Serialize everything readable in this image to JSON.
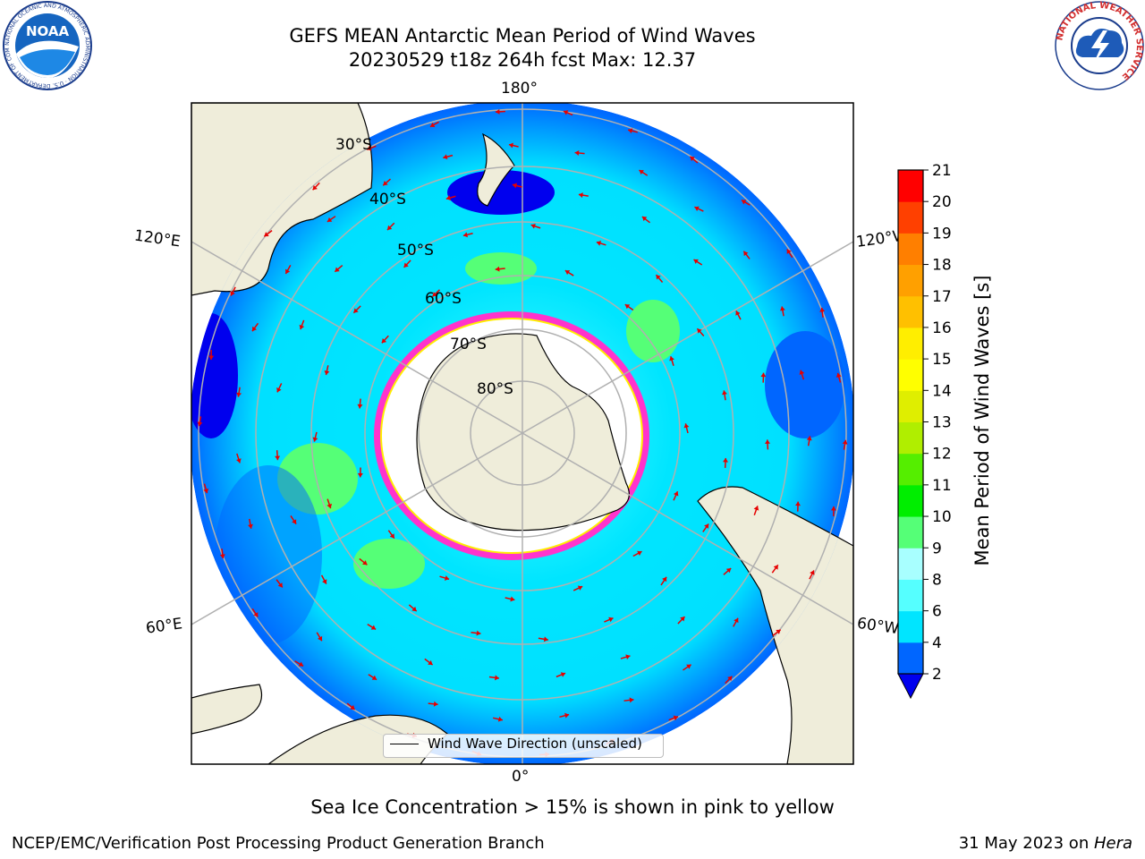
{
  "header": {
    "title_line1": "GEFS MEAN Antarctic Mean Period of Wind Waves",
    "title_line2": "20230529 t18z 264h fcst   Max: 12.37",
    "logo_left_text": "NOAA",
    "logo_left_ring": "NATIONAL OCEANIC AND ATMOSPHERIC ADMINISTRATION · U.S. DEPARTMENT OF COMMERCE",
    "logo_right_ring": "NATIONAL WEATHER SERVICE"
  },
  "map": {
    "lon_labels": {
      "top": "180°",
      "bottom": "0°",
      "upper_left": "120°E",
      "upper_right": "120°W",
      "lower_left": "60°E",
      "lower_right": "60°W"
    },
    "lat_labels": [
      "30°S",
      "40°S",
      "50°S",
      "60°S",
      "70°S",
      "80°S"
    ],
    "legend_label": "Wind Wave Direction (unscaled)",
    "colors": {
      "land": "#efedda",
      "ice_free_shelf": "#ffffff",
      "sea_ice_edge": "#ff33cc",
      "arrow": "#e60000",
      "grid": "#b0b0b0"
    }
  },
  "colorbar": {
    "title": "Mean Period of Wind Waves [s]",
    "ticks": [
      "2",
      "4",
      "6",
      "8",
      "9",
      "10",
      "11",
      "12",
      "13",
      "14",
      "15",
      "16",
      "17",
      "18",
      "19",
      "20",
      "21"
    ],
    "colors": [
      "#0066ff",
      "#00e5ff",
      "#55ffff",
      "#a8ffff",
      "#55ff77",
      "#00ee00",
      "#55ee00",
      "#b0ee00",
      "#dfee00",
      "#ffff00",
      "#ffee00",
      "#ffc000",
      "#ffa000",
      "#ff7f00",
      "#ff4000",
      "#ff0000"
    ],
    "under_color": "#0000ee"
  },
  "subtitle": "Sea Ice Concentration > 15% is shown in pink to yellow",
  "footer": {
    "left": "NCEP/EMC/Verification Post Processing Product Generation Branch",
    "right_date": "31 May 2023 on ",
    "right_machine": "Hera"
  }
}
